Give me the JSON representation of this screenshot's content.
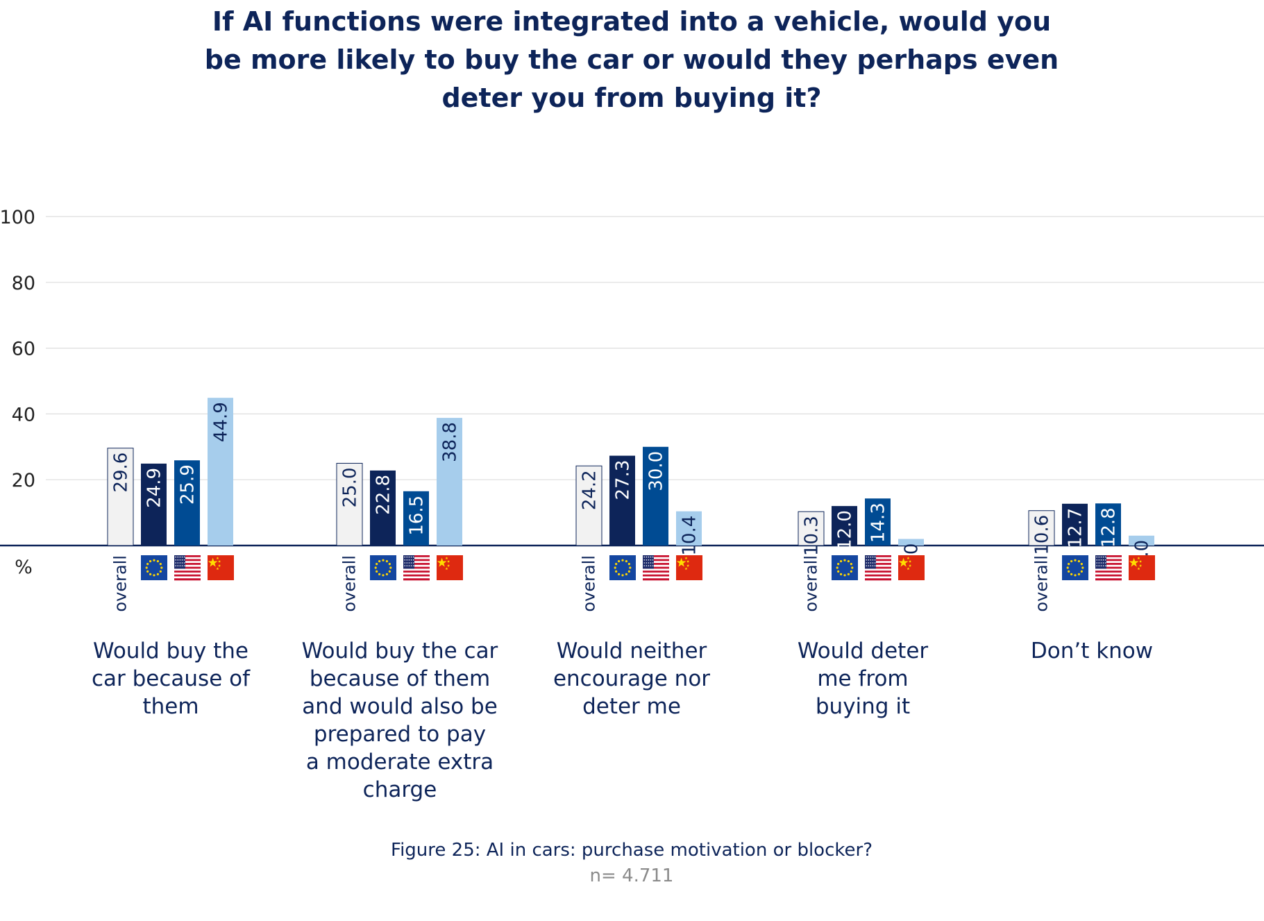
{
  "chart_data": {
    "type": "bar",
    "title": "If AI functions were integrated into a vehicle, would you be more likely to buy the car or would they perhaps even deter you from buying it?",
    "ylabel": "%",
    "ylim": [
      0,
      100
    ],
    "yticks": [
      "100",
      "80",
      "60",
      "40",
      "20"
    ],
    "grid": true,
    "categories": [
      "Would buy the car because of them",
      "Would buy the car because of them and would also be prepared to pay a moderate extra charge",
      "Would neither encourage nor deter me",
      "Would deter me from buying it",
      "Don’t know"
    ],
    "category_lines": [
      [
        "Would buy the",
        "car because of",
        "them"
      ],
      [
        "Would buy the car",
        "because of them",
        "and would also be",
        "prepared to pay",
        "a moderate extra",
        "charge"
      ],
      [
        "Would neither",
        "encourage nor",
        "deter me"
      ],
      [
        "Would deter",
        "me from",
        "buying it"
      ],
      [
        "Don’t know"
      ]
    ],
    "series": [
      {
        "name": "overall",
        "color": "#f2f2f2",
        "stroke": "#0d2459",
        "label_color": "#0d2459",
        "flag": "",
        "values": [
          29.6,
          25.0,
          24.2,
          10.3,
          10.6
        ]
      },
      {
        "name": "",
        "flag": "eu-flag-icon",
        "color": "#0d2459",
        "label_color": "#ffffff",
        "values": [
          24.9,
          22.8,
          27.3,
          12.0,
          12.7
        ]
      },
      {
        "name": "",
        "flag": "us-flag-icon",
        "color": "#004b93",
        "label_color": "#ffffff",
        "values": [
          25.9,
          16.5,
          30.0,
          14.3,
          12.8
        ]
      },
      {
        "name": "",
        "flag": "china-flag-icon",
        "color": "#a6cdec",
        "label_color": "#0d2459",
        "values": [
          44.9,
          38.8,
          10.4,
          2.0,
          3.0
        ]
      }
    ],
    "value_labels": [
      [
        "29.6",
        "25.0",
        "24.2",
        "10.3",
        "10.6"
      ],
      [
        "24.9",
        "22.8",
        "27.3",
        "12.0",
        "12.7"
      ],
      [
        "25.9",
        "16.5",
        "30.0",
        "14.3",
        "12.8"
      ],
      [
        "44.9",
        "38.8",
        "10.4",
        "2.0",
        "3.0"
      ]
    ]
  },
  "caption": "Figure 25: AI in cars: purchase motivation or blocker?",
  "sample_size": "n= 4.711"
}
